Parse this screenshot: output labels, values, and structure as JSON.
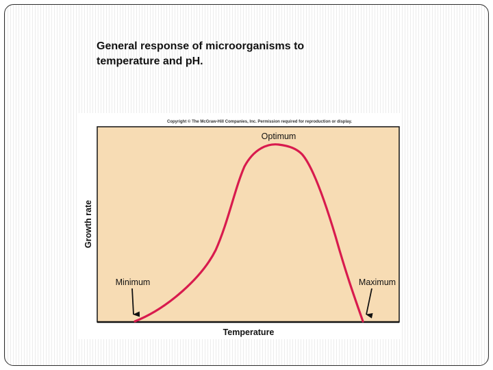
{
  "slide": {
    "title_line1": "General response of microorganisms to",
    "title_line2": "temperature and pH."
  },
  "figure": {
    "copyright": "Copyright © The McGraw-Hill Companies, Inc. Permission required for reproduction or display.",
    "colors": {
      "plot_background": "#f7dcb4",
      "curve": "#d81b4e",
      "axis": "#111111"
    }
  },
  "chart_data": {
    "type": "line",
    "title": "",
    "xlabel": "Temperature",
    "ylabel": "Growth rate",
    "annotations": [
      "Minimum",
      "Optimum",
      "Maximum"
    ],
    "axis_ticks": false,
    "grid": false
  }
}
